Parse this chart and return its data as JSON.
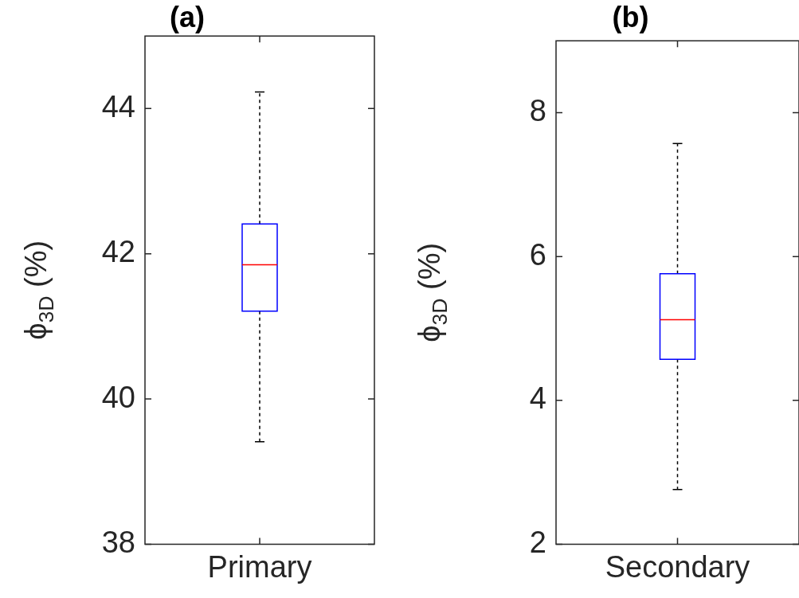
{
  "chart_data": [
    {
      "type": "box",
      "title": "(a)",
      "ylabel": "ϕ$_{3D}$ (%)",
      "categories": [
        "Primary"
      ],
      "ylim": [
        38,
        45
      ],
      "yticks": [
        38,
        40,
        42,
        44
      ],
      "grid": false,
      "series": [
        {
          "color": "#0000ff",
          "boxes": [
            {
              "low": 39.41,
              "q1": 41.21,
              "median": 41.85,
              "q3": 42.41,
              "high": 44.23
            }
          ]
        }
      ]
    },
    {
      "type": "box",
      "title": "(b)",
      "ylabel": "ϕ$_{3D}$ (%)",
      "categories": [
        "Secondary"
      ],
      "ylim": [
        2,
        9
      ],
      "yticks": [
        2,
        4,
        6,
        8
      ],
      "grid": false,
      "series": [
        {
          "color": "#0000ff",
          "boxes": [
            {
              "low": 2.76,
              "q1": 4.57,
              "median": 5.12,
              "q3": 5.76,
              "high": 7.57
            }
          ]
        }
      ]
    }
  ]
}
